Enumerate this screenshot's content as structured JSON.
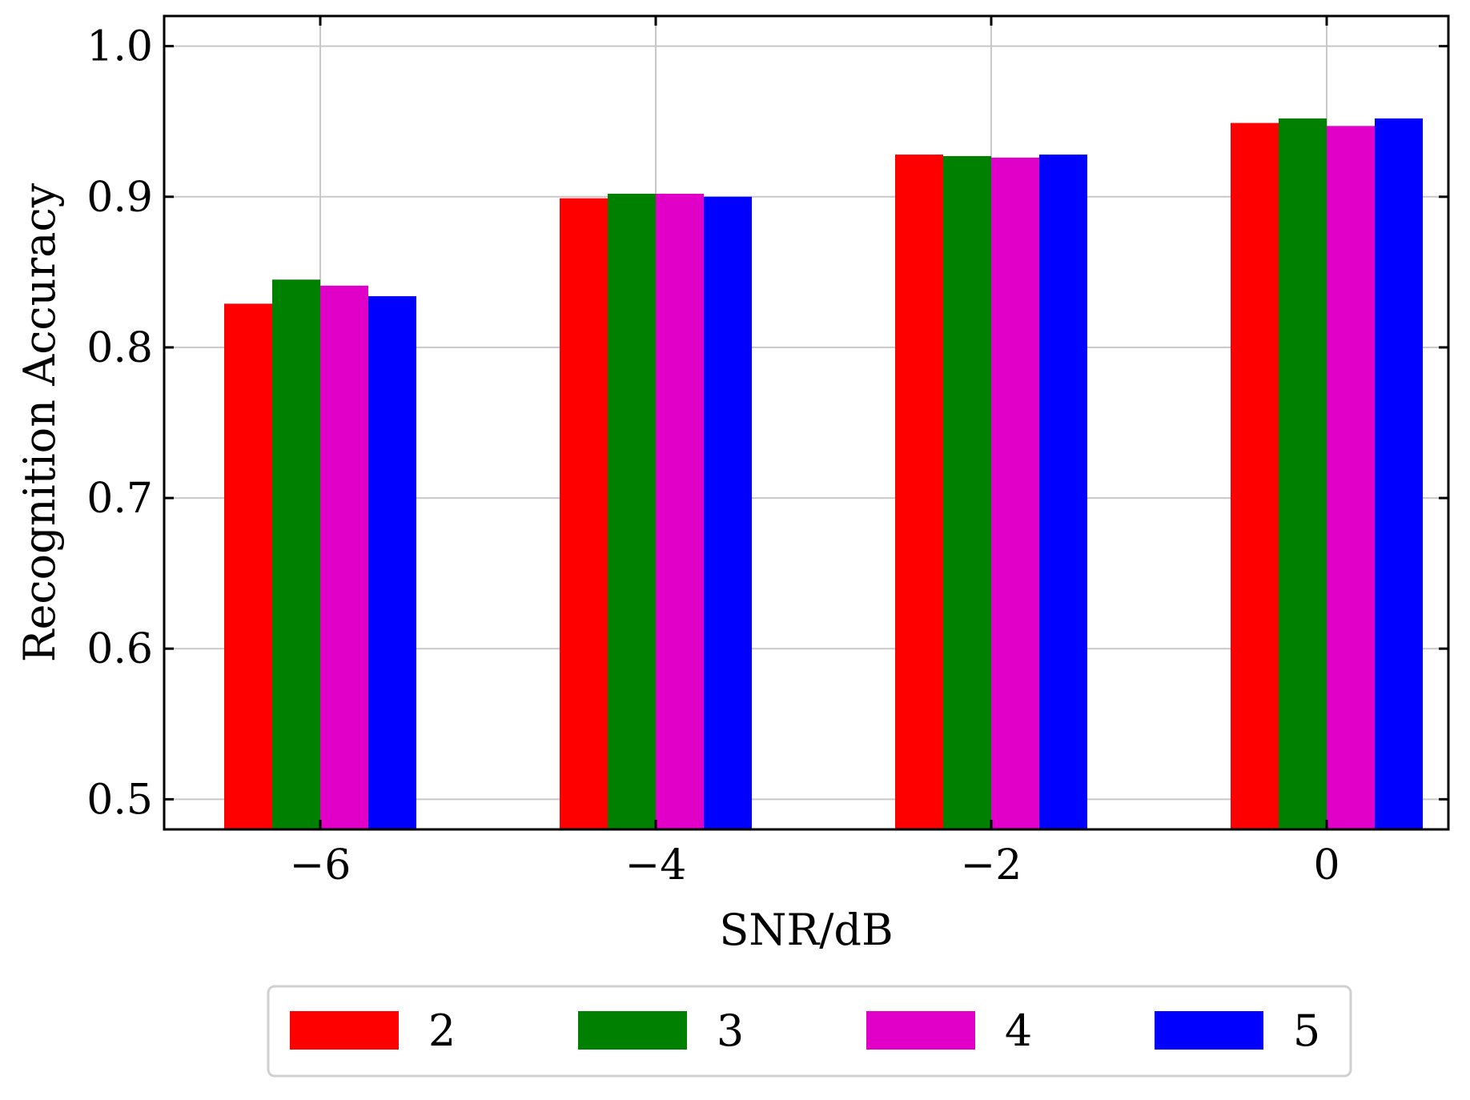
{
  "chart_data": {
    "type": "bar",
    "categories": [
      "−6",
      "−4",
      "−2",
      "0"
    ],
    "series": [
      {
        "name": "2",
        "color": "#ff0000",
        "values": [
          0.829,
          0.899,
          0.928,
          0.949
        ]
      },
      {
        "name": "3",
        "color": "#008000",
        "values": [
          0.845,
          0.902,
          0.927,
          0.952
        ]
      },
      {
        "name": "4",
        "color": "#e000c8",
        "values": [
          0.841,
          0.902,
          0.926,
          0.947
        ]
      },
      {
        "name": "5",
        "color": "#0000ff",
        "values": [
          0.834,
          0.9,
          0.928,
          0.952
        ]
      }
    ],
    "xlabel": "SNR/dB",
    "ylabel": "Recognition Accuracy",
    "ylim": [
      0.48,
      1.02
    ],
    "yticks": [
      0.5,
      0.6,
      0.7,
      0.8,
      0.9,
      1.0
    ],
    "ytick_labels": [
      "0.5",
      "0.6",
      "0.7",
      "0.8",
      "0.9",
      "1.0"
    ],
    "grid": true,
    "legend_position": "bottom-center"
  }
}
